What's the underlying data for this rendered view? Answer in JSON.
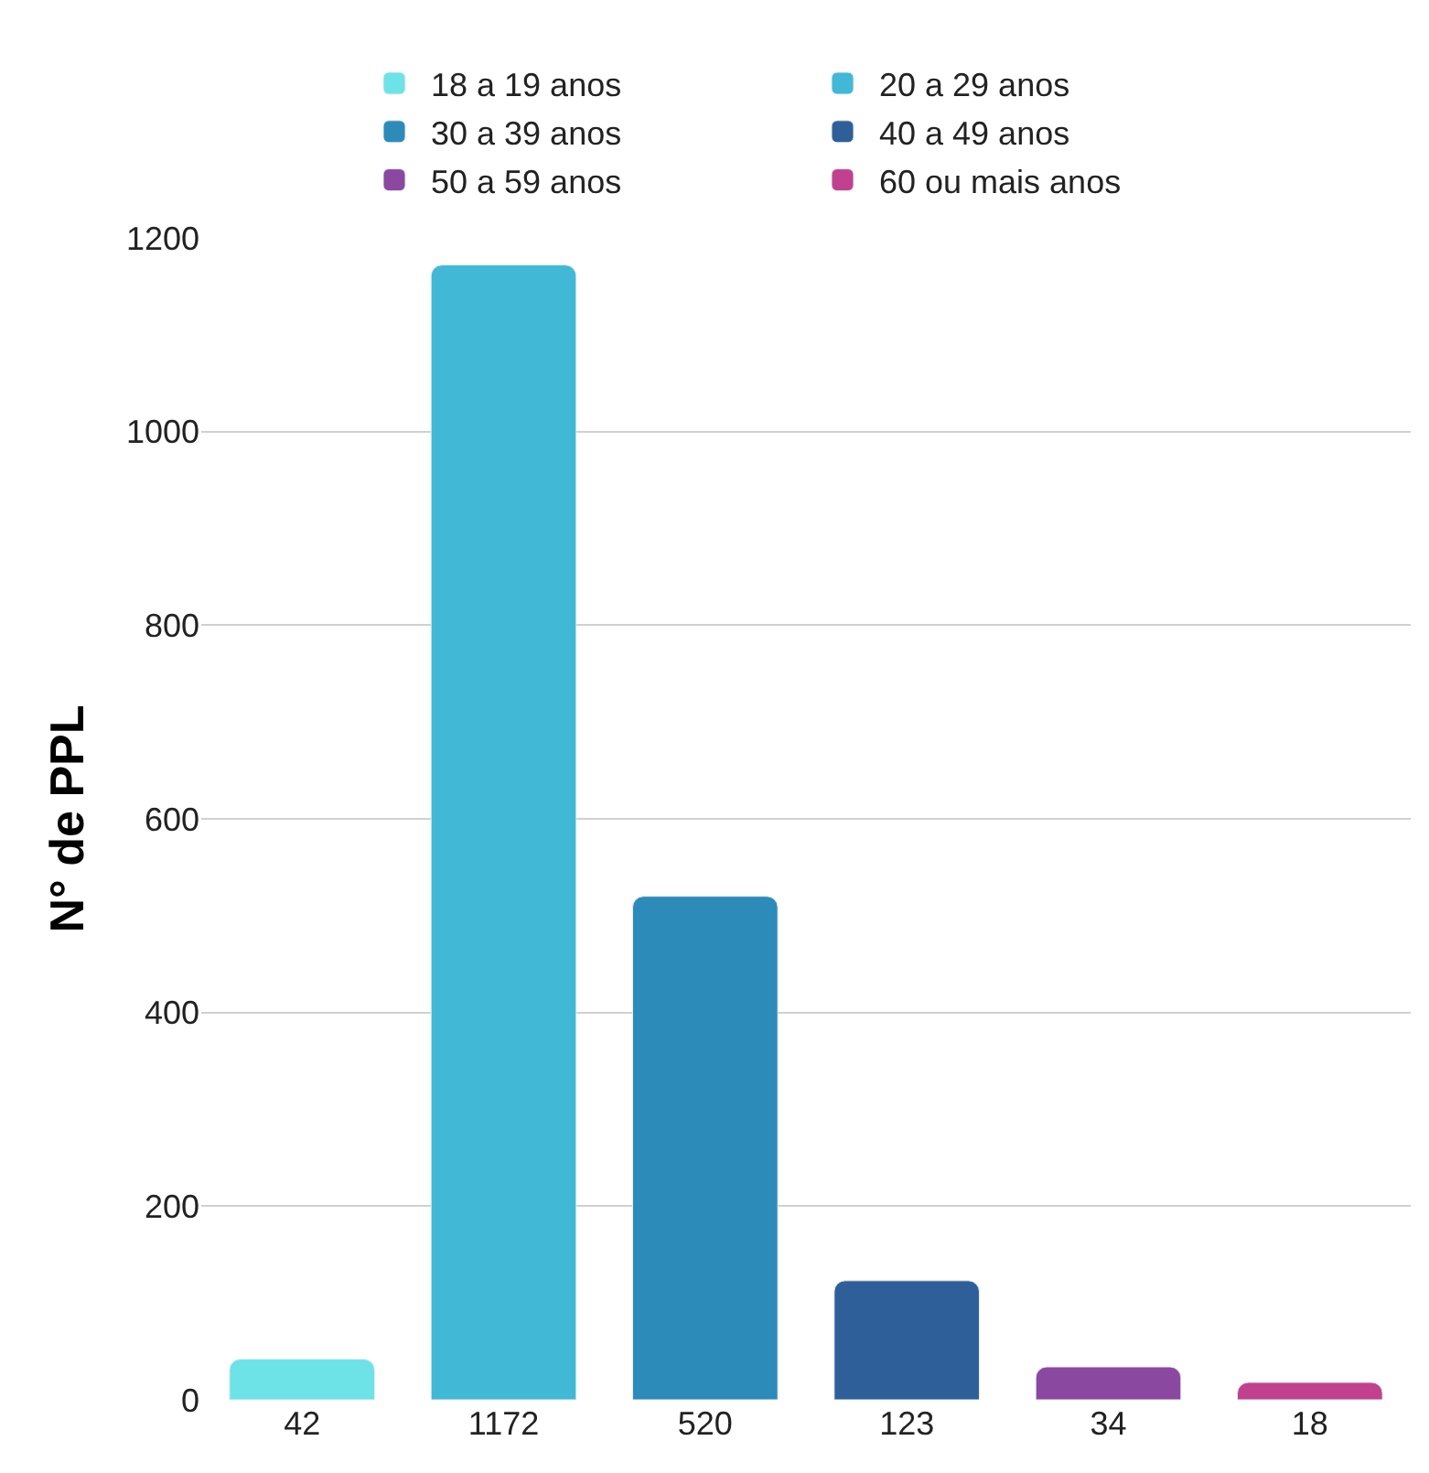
{
  "chart_data": {
    "type": "bar",
    "ylabel": "N° de PPL",
    "categories": [
      "42",
      "1172",
      "520",
      "123",
      "34",
      "18"
    ],
    "series": [
      {
        "name": "18 a 19 anos",
        "color": "#6de3e8",
        "values": [
          42,
          null,
          null,
          null,
          null,
          null
        ]
      },
      {
        "name": "20 a 29 anos",
        "color": "#41b8d5",
        "values": [
          null,
          1172,
          null,
          null,
          null,
          null
        ]
      },
      {
        "name": "30 a 39 anos",
        "color": "#2d8bba",
        "values": [
          null,
          null,
          520,
          null,
          null,
          null
        ]
      },
      {
        "name": "40 a 49 anos",
        "color": "#2f5f98",
        "values": [
          null,
          null,
          null,
          123,
          null,
          null
        ]
      },
      {
        "name": "50 a 59 anos",
        "color": "#8a48a0",
        "values": [
          null,
          null,
          null,
          null,
          34,
          null
        ]
      },
      {
        "name": "60 ou mais anos",
        "color": "#c2418f",
        "values": [
          null,
          null,
          null,
          null,
          null,
          18
        ]
      }
    ],
    "ylim": [
      0,
      1200
    ],
    "yticks": [
      0,
      200,
      400,
      600,
      800,
      1000,
      1200
    ],
    "grid": "y",
    "legend": "top"
  }
}
